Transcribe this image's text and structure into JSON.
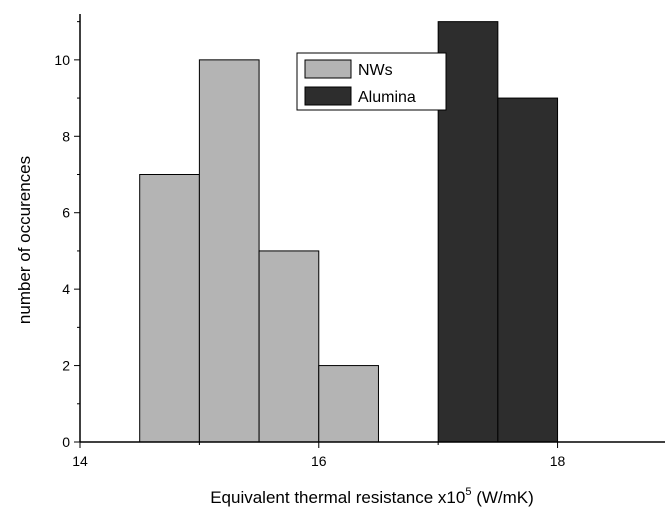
{
  "chart_data": {
    "type": "bar",
    "title": "",
    "xlabel": "Equivalent thermal resistance x10",
    "xlabel_superscript": "5",
    "xlabel_suffix": " (W/mK)",
    "ylabel": "number of occurences",
    "xlim": [
      14,
      18.9
    ],
    "ylim": [
      0,
      11.2
    ],
    "x_ticks": [
      14,
      16,
      18
    ],
    "y_ticks": [
      0,
      2,
      4,
      6,
      8,
      10
    ],
    "legend_position": "top-center",
    "series": [
      {
        "name": "NWs",
        "color": "#b4b4b4",
        "bins": [
          {
            "x0": 14.5,
            "x1": 15.0,
            "value": 7
          },
          {
            "x0": 15.0,
            "x1": 15.5,
            "value": 10
          },
          {
            "x0": 15.5,
            "x1": 16.0,
            "value": 5
          },
          {
            "x0": 16.0,
            "x1": 16.5,
            "value": 2
          }
        ]
      },
      {
        "name": "Alumina",
        "color": "#2d2d2d",
        "bins": [
          {
            "x0": 17.0,
            "x1": 17.5,
            "value": 11
          },
          {
            "x0": 17.5,
            "x1": 18.0,
            "value": 9
          }
        ]
      }
    ]
  }
}
